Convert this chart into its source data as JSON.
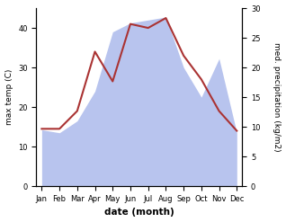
{
  "months": [
    "Jan",
    "Feb",
    "Mar",
    "Apr",
    "May",
    "Jun",
    "Jul",
    "Aug",
    "Sep",
    "Oct",
    "Nov",
    "Dec"
  ],
  "month_indices": [
    0,
    1,
    2,
    3,
    4,
    5,
    6,
    7,
    8,
    9,
    10,
    11
  ],
  "temperature": [
    14.5,
    14.5,
    19.0,
    34.0,
    26.5,
    41.0,
    40.0,
    42.5,
    33.0,
    27.0,
    19.0,
    14.0
  ],
  "precipitation": [
    9.5,
    9.0,
    11.0,
    16.0,
    26.0,
    27.5,
    28.0,
    28.5,
    20.0,
    15.0,
    21.5,
    9.0
  ],
  "temp_color": "#aa3333",
  "precip_fill_color": "#b8c4ee",
  "precip_fill_alpha": 1.0,
  "temp_ylim": [
    0,
    45
  ],
  "precip_ylim": [
    0,
    30
  ],
  "temp_yticks": [
    0,
    10,
    20,
    30,
    40
  ],
  "precip_yticks": [
    0,
    5,
    10,
    15,
    20,
    25,
    30
  ],
  "xlabel": "date (month)",
  "ylabel_left": "max temp (C)",
  "ylabel_right": "med. precipitation (kg/m2)",
  "figsize": [
    3.18,
    2.47
  ],
  "dpi": 100
}
